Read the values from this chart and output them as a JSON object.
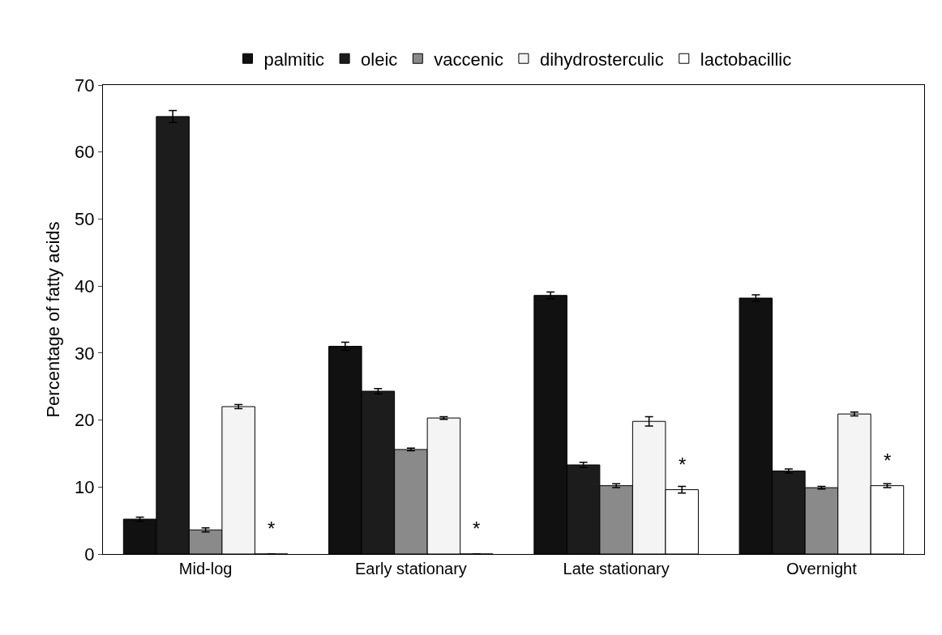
{
  "chart_data": {
    "type": "bar",
    "ylabel": "Percentage of fatty acids",
    "categories": [
      "Mid-log",
      "Early stationary",
      "Late stationary",
      "Overnight"
    ],
    "series": [
      {
        "name": "palmitic",
        "color": "#111111",
        "values": [
          5.2,
          31,
          38.6,
          38.2
        ],
        "errors": [
          0.3,
          0.6,
          0.5,
          0.5
        ]
      },
      {
        "name": "oleic",
        "color": "#1c1c1c",
        "values": [
          65.3,
          24.3,
          13.3,
          12.4
        ],
        "errors": [
          0.9,
          0.4,
          0.4,
          0.3
        ]
      },
      {
        "name": "vaccenic",
        "color": "#8a8a8a",
        "values": [
          3.6,
          15.6,
          10.2,
          9.9
        ],
        "errors": [
          0.3,
          0.2,
          0.3,
          0.2
        ]
      },
      {
        "name": "dihydrosterculic",
        "color": "#f4f4f4",
        "values": [
          22,
          20.3,
          19.8,
          20.9
        ],
        "errors": [
          0.3,
          0.2,
          0.7,
          0.3
        ]
      },
      {
        "name": "lactobacillic",
        "color": "#ffffff",
        "values": [
          0,
          0,
          9.6,
          10.2
        ],
        "errors": [
          null,
          null,
          0.5,
          0.3
        ]
      }
    ],
    "annotations": [
      "*",
      "*",
      "*",
      "*"
    ],
    "ylim": [
      0,
      70
    ],
    "yticks": [
      0,
      10,
      20,
      30,
      40,
      50,
      60,
      70
    ],
    "grid": false,
    "legend": "top"
  }
}
